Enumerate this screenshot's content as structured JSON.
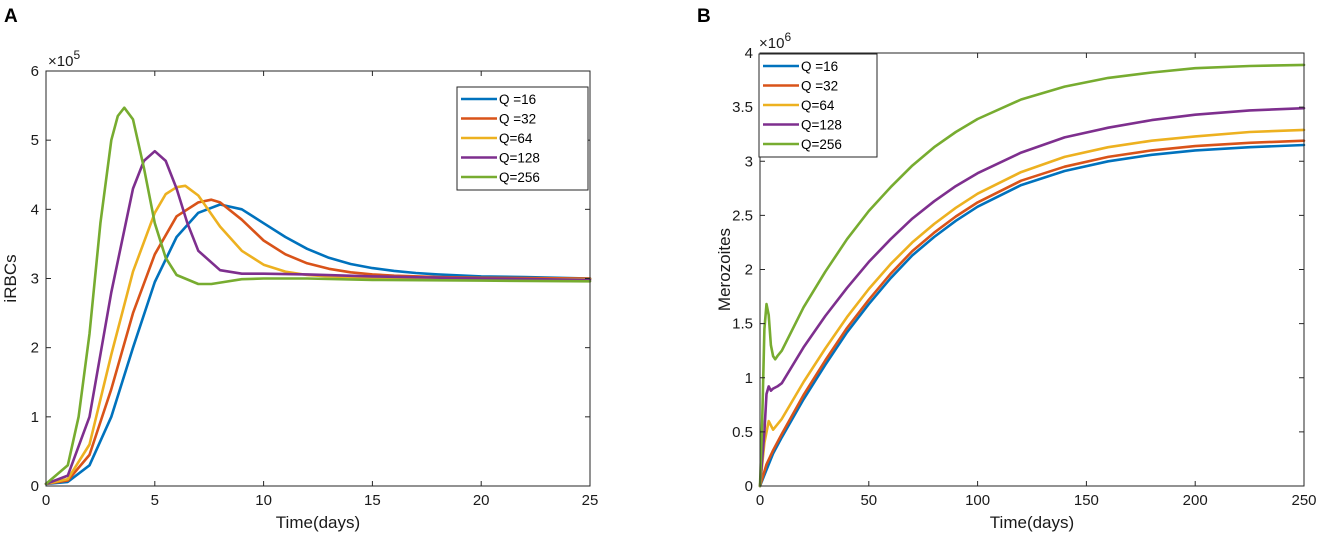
{
  "chart_data": [
    {
      "panel": "A",
      "type": "line",
      "xlabel": "Time(days)",
      "ylabel": "iRBCs",
      "y_multiplier": "×10",
      "y_exponent": "5",
      "xlim": [
        0,
        25
      ],
      "ylim": [
        0,
        6
      ],
      "xticks": [
        0,
        5,
        10,
        15,
        20,
        25
      ],
      "yticks": [
        0,
        1,
        2,
        3,
        4,
        5,
        6
      ],
      "grid": false,
      "legend_position": "top-right",
      "series": [
        {
          "name": "Q =16",
          "color": "#0072BD",
          "x": [
            0,
            1,
            2,
            3,
            4,
            5,
            6,
            7,
            8,
            9,
            10,
            11,
            12,
            13,
            14,
            15,
            16,
            17,
            18,
            20,
            22,
            25
          ],
          "y": [
            0.03,
            0.06,
            0.3,
            1.0,
            2.0,
            2.95,
            3.6,
            3.95,
            4.07,
            4.0,
            3.8,
            3.6,
            3.43,
            3.3,
            3.21,
            3.15,
            3.11,
            3.08,
            3.06,
            3.03,
            3.02,
            3.0
          ]
        },
        {
          "name": "Q =32",
          "color": "#D95319",
          "x": [
            0,
            1,
            2,
            3,
            4,
            5,
            6,
            7,
            7.6,
            8,
            9,
            10,
            11,
            12,
            13,
            14,
            15,
            16,
            18,
            20,
            25
          ],
          "y": [
            0.03,
            0.08,
            0.45,
            1.4,
            2.5,
            3.35,
            3.9,
            4.1,
            4.14,
            4.1,
            3.85,
            3.55,
            3.35,
            3.22,
            3.14,
            3.09,
            3.06,
            3.04,
            3.02,
            3.01,
            3.0
          ]
        },
        {
          "name": "Q=64",
          "color": "#EDB120",
          "x": [
            0,
            1,
            2,
            3,
            4,
            5,
            5.5,
            6,
            6.4,
            7,
            8,
            9,
            10,
            11,
            12,
            13,
            14,
            15,
            17,
            20,
            25
          ],
          "y": [
            0.03,
            0.1,
            0.6,
            1.9,
            3.1,
            3.95,
            4.22,
            4.32,
            4.34,
            4.2,
            3.75,
            3.4,
            3.2,
            3.1,
            3.05,
            3.03,
            3.02,
            3.01,
            3.0,
            2.99,
            2.99
          ]
        },
        {
          "name": "Q=128",
          "color": "#7E2F8E",
          "x": [
            0,
            1,
            2,
            3,
            4,
            4.5,
            5,
            5.5,
            6,
            6.5,
            7,
            8,
            9,
            10,
            12,
            15,
            20,
            25
          ],
          "y": [
            0.03,
            0.15,
            1.0,
            2.8,
            4.3,
            4.7,
            4.84,
            4.7,
            4.3,
            3.8,
            3.4,
            3.12,
            3.07,
            3.07,
            3.06,
            3.03,
            3.0,
            2.98
          ]
        },
        {
          "name": "Q=256",
          "color": "#77AC30",
          "x": [
            0,
            1,
            1.5,
            2,
            2.5,
            3,
            3.3,
            3.6,
            4,
            4.5,
            5,
            5.5,
            6,
            7,
            7.6,
            8,
            9,
            10,
            12,
            15,
            20,
            25
          ],
          "y": [
            0.03,
            0.3,
            1.0,
            2.2,
            3.8,
            5.0,
            5.35,
            5.47,
            5.3,
            4.6,
            3.8,
            3.3,
            3.05,
            2.92,
            2.92,
            2.94,
            2.99,
            3.0,
            3.0,
            2.98,
            2.97,
            2.96
          ]
        }
      ]
    },
    {
      "panel": "B",
      "type": "line",
      "xlabel": "Time(days)",
      "ylabel": "Merozoites",
      "y_multiplier": "×10",
      "y_exponent": "6",
      "xlim": [
        0,
        250
      ],
      "ylim": [
        0,
        4
      ],
      "xticks": [
        0,
        50,
        100,
        150,
        200,
        250
      ],
      "yticks": [
        0,
        0.5,
        1,
        1.5,
        2,
        2.5,
        3,
        3.5,
        4
      ],
      "grid": false,
      "legend_position": "top-left",
      "series": [
        {
          "name": "Q =16",
          "color": "#0072BD",
          "x": [
            0,
            3,
            6,
            10,
            20,
            30,
            40,
            50,
            60,
            70,
            80,
            90,
            100,
            120,
            140,
            160,
            180,
            200,
            225,
            250
          ],
          "y": [
            0,
            0.15,
            0.3,
            0.45,
            0.8,
            1.12,
            1.42,
            1.68,
            1.92,
            2.13,
            2.3,
            2.45,
            2.58,
            2.78,
            2.91,
            3.0,
            3.06,
            3.1,
            3.13,
            3.15
          ]
        },
        {
          "name": "Q =32",
          "color": "#D95319",
          "x": [
            0,
            3,
            6,
            10,
            20,
            30,
            40,
            50,
            60,
            70,
            80,
            90,
            100,
            120,
            140,
            160,
            180,
            200,
            225,
            250
          ],
          "y": [
            0,
            0.2,
            0.33,
            0.48,
            0.84,
            1.16,
            1.46,
            1.72,
            1.96,
            2.17,
            2.34,
            2.49,
            2.62,
            2.82,
            2.95,
            3.04,
            3.1,
            3.14,
            3.17,
            3.19
          ]
        },
        {
          "name": "Q=64",
          "color": "#EDB120",
          "x": [
            0,
            2,
            4,
            6,
            10,
            20,
            30,
            40,
            50,
            60,
            70,
            80,
            90,
            100,
            120,
            140,
            160,
            180,
            200,
            225,
            250
          ],
          "y": [
            0,
            0.4,
            0.6,
            0.52,
            0.62,
            0.96,
            1.27,
            1.56,
            1.82,
            2.05,
            2.25,
            2.42,
            2.57,
            2.7,
            2.9,
            3.04,
            3.13,
            3.19,
            3.23,
            3.27,
            3.29
          ]
        },
        {
          "name": "Q=128",
          "color": "#7E2F8E",
          "x": [
            0,
            2,
            3,
            4,
            5,
            6,
            8,
            10,
            20,
            30,
            40,
            50,
            60,
            70,
            80,
            90,
            100,
            120,
            140,
            160,
            180,
            200,
            225,
            250
          ],
          "y": [
            0,
            0.5,
            0.85,
            0.92,
            0.88,
            0.9,
            0.92,
            0.95,
            1.28,
            1.57,
            1.83,
            2.07,
            2.28,
            2.47,
            2.63,
            2.77,
            2.89,
            3.08,
            3.22,
            3.31,
            3.38,
            3.43,
            3.47,
            3.49
          ]
        },
        {
          "name": "Q=256",
          "color": "#77AC30",
          "x": [
            0,
            1,
            2,
            3,
            4,
            5,
            6,
            7,
            8,
            10,
            20,
            30,
            40,
            50,
            60,
            70,
            80,
            90,
            100,
            120,
            140,
            160,
            180,
            200,
            225,
            250
          ],
          "y": [
            0,
            0.6,
            1.45,
            1.68,
            1.58,
            1.3,
            1.2,
            1.17,
            1.2,
            1.25,
            1.65,
            1.98,
            2.28,
            2.54,
            2.76,
            2.96,
            3.13,
            3.27,
            3.39,
            3.57,
            3.69,
            3.77,
            3.82,
            3.86,
            3.88,
            3.89
          ]
        }
      ]
    }
  ]
}
